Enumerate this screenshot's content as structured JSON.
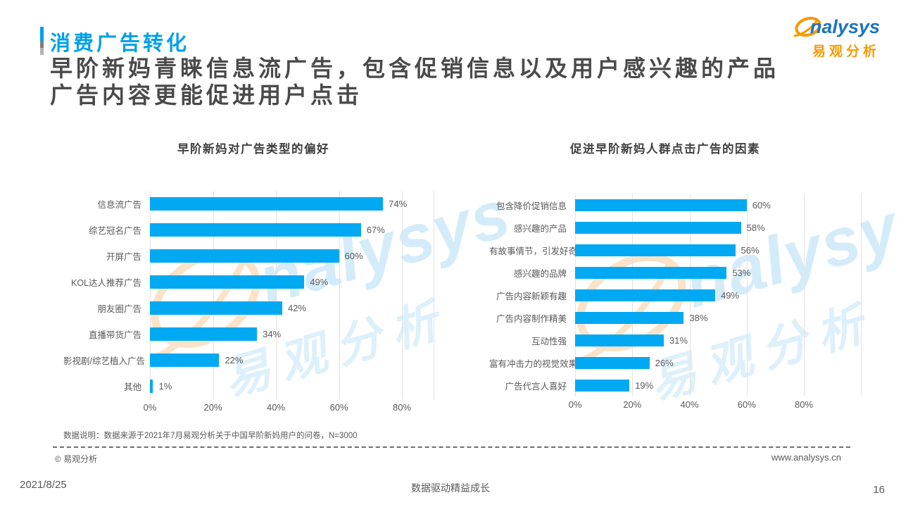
{
  "header": {
    "eyebrow": "消费广告转化",
    "title_line1": "早阶新妈青睐信息流广告，包含促销信息以及用户感兴趣的产品",
    "title_line2": "广告内容更能促进用户点击"
  },
  "logo": {
    "latin": "nalysys",
    "cn": "易观分析"
  },
  "watermark": {
    "latin": "nalysys",
    "cn": "易观分析"
  },
  "chart_data": [
    {
      "type": "bar",
      "orientation": "horizontal",
      "title": "早阶新妈对广告类型的偏好",
      "categories": [
        "信息流广告",
        "综艺冠名广告",
        "开屏广告",
        "KOL达人推荐广告",
        "朋友圈广告",
        "直播带货广告",
        "影视剧/综艺植入广告",
        "其他"
      ],
      "values": [
        74,
        67,
        60,
        49,
        42,
        34,
        22,
        1
      ],
      "value_labels": [
        "74%",
        "67%",
        "60%",
        "49%",
        "42%",
        "34%",
        "22%",
        "1%"
      ],
      "xticks": [
        "0%",
        "20%",
        "40%",
        "60%",
        "80%"
      ],
      "xlim": [
        0,
        80
      ],
      "grid": true,
      "legend": "none"
    },
    {
      "type": "bar",
      "orientation": "horizontal",
      "title": "促进早阶新妈人群点击广告的因素",
      "categories": [
        "包含降价促销信息",
        "感兴趣的产品",
        "有故事情节，引发好奇",
        "感兴趣的品牌",
        "广告内容新颖有趣",
        "广告内容制作精美",
        "互动性强",
        "富有冲击力的视觉效果",
        "广告代言人喜好"
      ],
      "values": [
        60,
        58,
        56,
        53,
        49,
        38,
        31,
        26,
        19
      ],
      "value_labels": [
        "60%",
        "58%",
        "56%",
        "53%",
        "49%",
        "38%",
        "31%",
        "26%",
        "19%"
      ],
      "xticks": [
        "0%",
        "20%",
        "40%",
        "60%",
        "80%"
      ],
      "xlim": [
        0,
        80
      ],
      "grid": true,
      "legend": "none"
    }
  ],
  "footnote": "数据说明：数据来源于2021年7月易观分析关于中国早阶新妈用户的问卷，N=3000",
  "legal": {
    "copyright": "© 易观分析",
    "website": "www.analysys.cn"
  },
  "footer": {
    "date": "2021/8/25",
    "slogan": "数据驱动精益成长",
    "page_number": "16"
  },
  "colors": {
    "bar": "#00a9f2",
    "accent_blue": "#00a0e9",
    "title_gray": "#4a4a4a",
    "logo_blue": "#1c74ba",
    "logo_orange": "#f59a00",
    "gridline": "#e2e2e2",
    "text_gray": "#595959"
  }
}
